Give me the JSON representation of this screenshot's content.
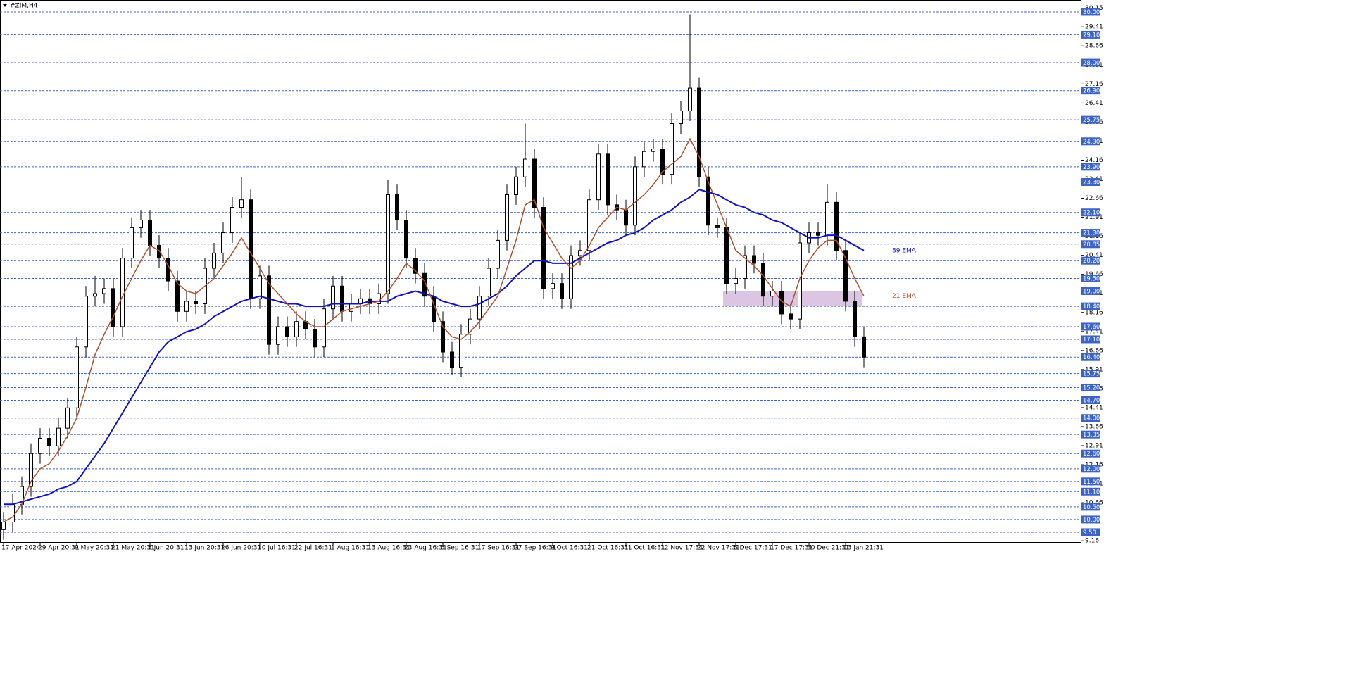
{
  "chart_data": {
    "type": "candlestick",
    "title": "#ZIM,H4",
    "ylim": [
      9.11,
      30.47
    ],
    "yticks": [
      30.15,
      29.41,
      28.66,
      27.91,
      27.16,
      26.41,
      25.66,
      24.91,
      24.16,
      23.41,
      22.66,
      21.91,
      21.16,
      20.41,
      19.66,
      18.91,
      18.16,
      17.41,
      16.66,
      15.91,
      15.16,
      14.41,
      13.66,
      12.91,
      12.16,
      11.41,
      10.66,
      9.91,
      9.16
    ],
    "levels": [
      {
        "value": 30,
        "label": "30.00"
      },
      {
        "value": 29.1,
        "label": "29.10"
      },
      {
        "value": 28,
        "label": "28.00"
      },
      {
        "value": 26.9,
        "label": "26.90"
      },
      25.75,
      {
        "value": 24.9,
        "label": "24.90"
      },
      {
        "value": 23.9,
        "label": "23.90"
      },
      {
        "value": 23.3,
        "label": "23.30"
      },
      {
        "value": 22.1,
        "label": "22.10"
      },
      {
        "value": 21.3,
        "label": "21.30"
      },
      20.85,
      {
        "value": 20.2,
        "label": "20.20"
      },
      {
        "value": 19.5,
        "label": "19.50"
      },
      {
        "value": 19,
        "label": "19.00"
      },
      {
        "value": 18.4,
        "label": "18.40"
      },
      {
        "value": 17.6,
        "label": "17.60"
      },
      {
        "value": 17.1,
        "label": "17.10"
      },
      {
        "value": 16.4,
        "label": "16.40"
      },
      15.75,
      {
        "value": 15.2,
        "label": "15.20"
      },
      {
        "value": 14.7,
        "label": "14.70"
      },
      {
        "value": 14,
        "label": "14.00"
      },
      13.35,
      {
        "value": 12.6,
        "label": "12.60"
      },
      {
        "value": 12,
        "label": "12.00"
      },
      {
        "value": 11.5,
        "label": "11.50"
      },
      {
        "value": 11.1,
        "label": "11.10"
      },
      {
        "value": 10.5,
        "label": "10.50"
      },
      {
        "value": 10,
        "label": "10.00"
      },
      {
        "value": 9.5,
        "label": "9.50"
      }
    ],
    "level_color": "#3c64c8",
    "zone": [
      18.4,
      19.0
    ],
    "zone_color": "#d8bfdf",
    "categories": [
      "17 Apr 2024",
      null,
      null,
      null,
      "29 Apr 20:31",
      null,
      null,
      null,
      "9 May 20:31",
      null,
      null,
      null,
      "21 May 20:31",
      null,
      null,
      null,
      "3 Jun 20:31",
      null,
      null,
      null,
      "13 Jun 20:31",
      null,
      null,
      null,
      "26 Jun 20:31",
      null,
      null,
      null,
      "10 Jul 16:31",
      null,
      null,
      null,
      "22 Jul 16:31",
      null,
      null,
      null,
      "1 Aug 16:31",
      null,
      null,
      null,
      "13 Aug 16:31",
      null,
      null,
      null,
      "23 Aug 16:31",
      null,
      null,
      null,
      "5 Sep 16:31",
      null,
      null,
      null,
      "17 Sep 16:31",
      null,
      null,
      null,
      "27 Sep 16:31",
      null,
      null,
      null,
      "9 Oct 16:31",
      null,
      null,
      null,
      "21 Oct 16:31",
      null,
      null,
      null,
      "31 Oct 16:31",
      null,
      null,
      null,
      "12 Nov 17:31",
      null,
      null,
      null,
      "22 Nov 17:31",
      null,
      null,
      null,
      "5 Dec 17:31",
      null,
      null,
      null,
      "17 Dec 17:31",
      null,
      null,
      null,
      "30 Dec 21:31",
      null,
      null,
      null,
      "13 Jan 21:31",
      null,
      null
    ],
    "open": [
      9.6,
      9.9,
      10.6,
      11.3,
      12.6,
      13.2,
      12.9,
      13.6,
      14.4,
      16.8,
      18.8,
      18.9,
      19.1,
      17.6,
      20.3,
      21.5,
      21.8,
      20.8,
      20.3,
      19.4,
      18.2,
      18.6,
      18.5,
      19.9,
      20.5,
      21.3,
      22.3,
      22.6,
      18.7,
      19.6,
      16.9,
      17.6,
      17.2,
      17.8,
      17.5,
      16.8,
      18.3,
      19.2,
      18.2,
      18.5,
      18.7,
      18.5,
      18.9,
      22.8,
      21.8,
      20.3,
      19.7,
      18.8,
      17.8,
      16.6,
      16.0,
      17.3,
      17.9,
      18.8,
      19.9,
      21.0,
      22.8,
      23.5,
      24.2,
      22.3,
      19.1,
      19.3,
      18.7,
      20.4,
      20.6,
      22.6,
      24.4,
      22.4,
      22.2,
      21.6,
      23.9,
      24.5,
      24.6,
      23.6,
      25.6,
      26.1,
      27.0,
      23.5,
      21.6,
      21.5,
      19.3,
      19.5,
      20.4,
      20.1,
      18.8,
      19.0,
      18.1,
      17.9,
      20.9,
      21.3,
      21.2,
      22.5,
      20.6,
      18.6,
      17.2
    ],
    "high": [
      10.3,
      11.0,
      11.7,
      13.0,
      13.6,
      13.6,
      14.0,
      14.8,
      17.2,
      19.2,
      19.6,
      19.5,
      19.5,
      20.7,
      21.9,
      22.2,
      22.2,
      21.2,
      20.7,
      19.8,
      19.0,
      19.0,
      20.3,
      20.9,
      21.7,
      22.7,
      23.5,
      23.0,
      20.0,
      20.0,
      18.0,
      18.0,
      18.2,
      18.2,
      17.9,
      18.7,
      19.6,
      19.6,
      18.9,
      19.1,
      19.1,
      19.3,
      23.4,
      23.2,
      22.2,
      20.7,
      20.1,
      19.2,
      18.2,
      17.0,
      17.7,
      18.3,
      19.2,
      20.3,
      21.4,
      23.2,
      23.9,
      25.6,
      24.6,
      22.7,
      19.7,
      19.7,
      20.8,
      21.0,
      23.0,
      24.8,
      24.8,
      22.8,
      22.6,
      24.3,
      24.9,
      25.0,
      25.0,
      26.0,
      26.5,
      29.9,
      27.4,
      23.9,
      21.9,
      21.9,
      19.9,
      20.8,
      20.8,
      20.5,
      19.4,
      19.4,
      18.5,
      21.3,
      21.7,
      21.7,
      23.2,
      22.9,
      21.0,
      19.0,
      17.6
    ],
    "low": [
      9.2,
      9.5,
      10.2,
      10.9,
      12.2,
      12.5,
      12.5,
      13.2,
      14.0,
      16.4,
      18.4,
      18.5,
      17.2,
      17.2,
      19.9,
      21.1,
      20.4,
      19.9,
      19.0,
      17.8,
      17.8,
      18.1,
      18.1,
      19.5,
      20.1,
      20.9,
      21.9,
      18.3,
      18.3,
      16.5,
      16.5,
      16.8,
      16.8,
      17.1,
      16.4,
      16.4,
      17.9,
      17.8,
      17.8,
      18.1,
      18.1,
      18.1,
      18.5,
      21.4,
      19.9,
      19.3,
      18.4,
      17.4,
      16.2,
      15.7,
      15.6,
      16.9,
      17.5,
      18.4,
      19.5,
      20.6,
      22.4,
      23.1,
      21.9,
      18.7,
      18.7,
      18.3,
      18.3,
      20.0,
      20.2,
      22.2,
      22.0,
      21.8,
      21.2,
      21.2,
      23.5,
      24.1,
      23.2,
      23.2,
      25.2,
      25.7,
      23.1,
      21.2,
      21.1,
      18.9,
      18.9,
      19.1,
      19.7,
      18.4,
      18.4,
      17.7,
      17.5,
      17.5,
      20.5,
      20.8,
      20.8,
      20.2,
      18.2,
      16.8,
      16.0
    ],
    "close": [
      9.9,
      10.6,
      11.3,
      12.6,
      13.2,
      12.9,
      13.6,
      14.4,
      16.8,
      18.8,
      18.9,
      19.1,
      17.6,
      20.3,
      21.5,
      21.8,
      20.8,
      20.3,
      19.4,
      18.2,
      18.6,
      18.5,
      19.9,
      20.5,
      21.3,
      22.3,
      22.6,
      18.7,
      19.6,
      16.9,
      17.6,
      17.2,
      17.8,
      17.5,
      16.8,
      18.3,
      19.2,
      18.2,
      18.5,
      18.7,
      18.5,
      18.9,
      22.8,
      21.8,
      20.3,
      19.7,
      18.8,
      17.8,
      16.6,
      16.0,
      17.3,
      17.9,
      18.8,
      19.9,
      21.0,
      22.8,
      23.5,
      24.2,
      22.3,
      19.1,
      19.3,
      18.7,
      20.4,
      20.6,
      22.6,
      24.4,
      22.4,
      22.2,
      21.6,
      23.9,
      24.5,
      24.6,
      23.6,
      25.6,
      26.1,
      27.0,
      23.5,
      21.6,
      21.5,
      19.3,
      19.5,
      20.4,
      20.1,
      18.8,
      19.0,
      18.1,
      17.9,
      20.9,
      21.3,
      21.2,
      22.5,
      20.6,
      18.6,
      17.2,
      16.4
    ],
    "overlays": [
      {
        "name": "89 EMA",
        "color": "#1010c8",
        "values": [
          10.6,
          10.6,
          10.7,
          10.8,
          10.9,
          11.0,
          11.2,
          11.3,
          11.5,
          12.0,
          12.5,
          13.0,
          13.6,
          14.2,
          14.8,
          15.4,
          16.0,
          16.6,
          17.0,
          17.2,
          17.4,
          17.5,
          17.7,
          18.0,
          18.2,
          18.4,
          18.6,
          18.7,
          18.8,
          18.7,
          18.6,
          18.5,
          18.5,
          18.4,
          18.4,
          18.4,
          18.5,
          18.5,
          18.5,
          18.5,
          18.6,
          18.6,
          18.6,
          18.8,
          18.9,
          19.0,
          18.9,
          18.8,
          18.6,
          18.5,
          18.4,
          18.4,
          18.5,
          18.7,
          18.9,
          19.2,
          19.6,
          19.9,
          20.2,
          20.2,
          20.1,
          20.1,
          20.1,
          20.3,
          20.5,
          20.7,
          20.9,
          21.0,
          21.2,
          21.3,
          21.5,
          21.8,
          22.0,
          22.2,
          22.5,
          22.7,
          23.0,
          22.9,
          22.8,
          22.6,
          22.4,
          22.3,
          22.1,
          22.0,
          21.8,
          21.7,
          21.5,
          21.3,
          21.1,
          21.1,
          21.2,
          21.2,
          21.0,
          20.8,
          20.6
        ]
      },
      {
        "name": "21 EMA",
        "color": "#b0502a",
        "values": [
          9.9,
          10.1,
          10.6,
          11.5,
          12.0,
          12.2,
          12.7,
          13.3,
          14.0,
          15.2,
          16.5,
          17.3,
          18.0,
          18.8,
          19.5,
          20.2,
          20.8,
          20.6,
          20.0,
          19.3,
          19.0,
          18.9,
          19.2,
          19.5,
          20.0,
          20.5,
          21.1,
          20.5,
          19.9,
          19.3,
          18.9,
          18.5,
          18.1,
          17.8,
          17.6,
          17.6,
          17.9,
          18.2,
          18.3,
          18.4,
          18.5,
          18.6,
          19.0,
          19.5,
          20.1,
          19.8,
          19.4,
          18.5,
          17.6,
          17.2,
          17.1,
          17.4,
          17.8,
          18.3,
          18.8,
          19.9,
          21.0,
          22.4,
          22.6,
          21.5,
          20.9,
          20.3,
          19.9,
          20.2,
          20.8,
          21.5,
          21.9,
          22.3,
          22.2,
          22.5,
          22.8,
          23.2,
          23.7,
          24.0,
          24.3,
          25.0,
          24.3,
          23.3,
          22.4,
          21.5,
          20.6,
          20.3,
          20.0,
          19.6,
          19.1,
          18.6,
          18.4,
          19.5,
          20.2,
          20.7,
          21.0,
          21.0,
          20.3,
          19.5,
          18.8
        ]
      }
    ]
  }
}
